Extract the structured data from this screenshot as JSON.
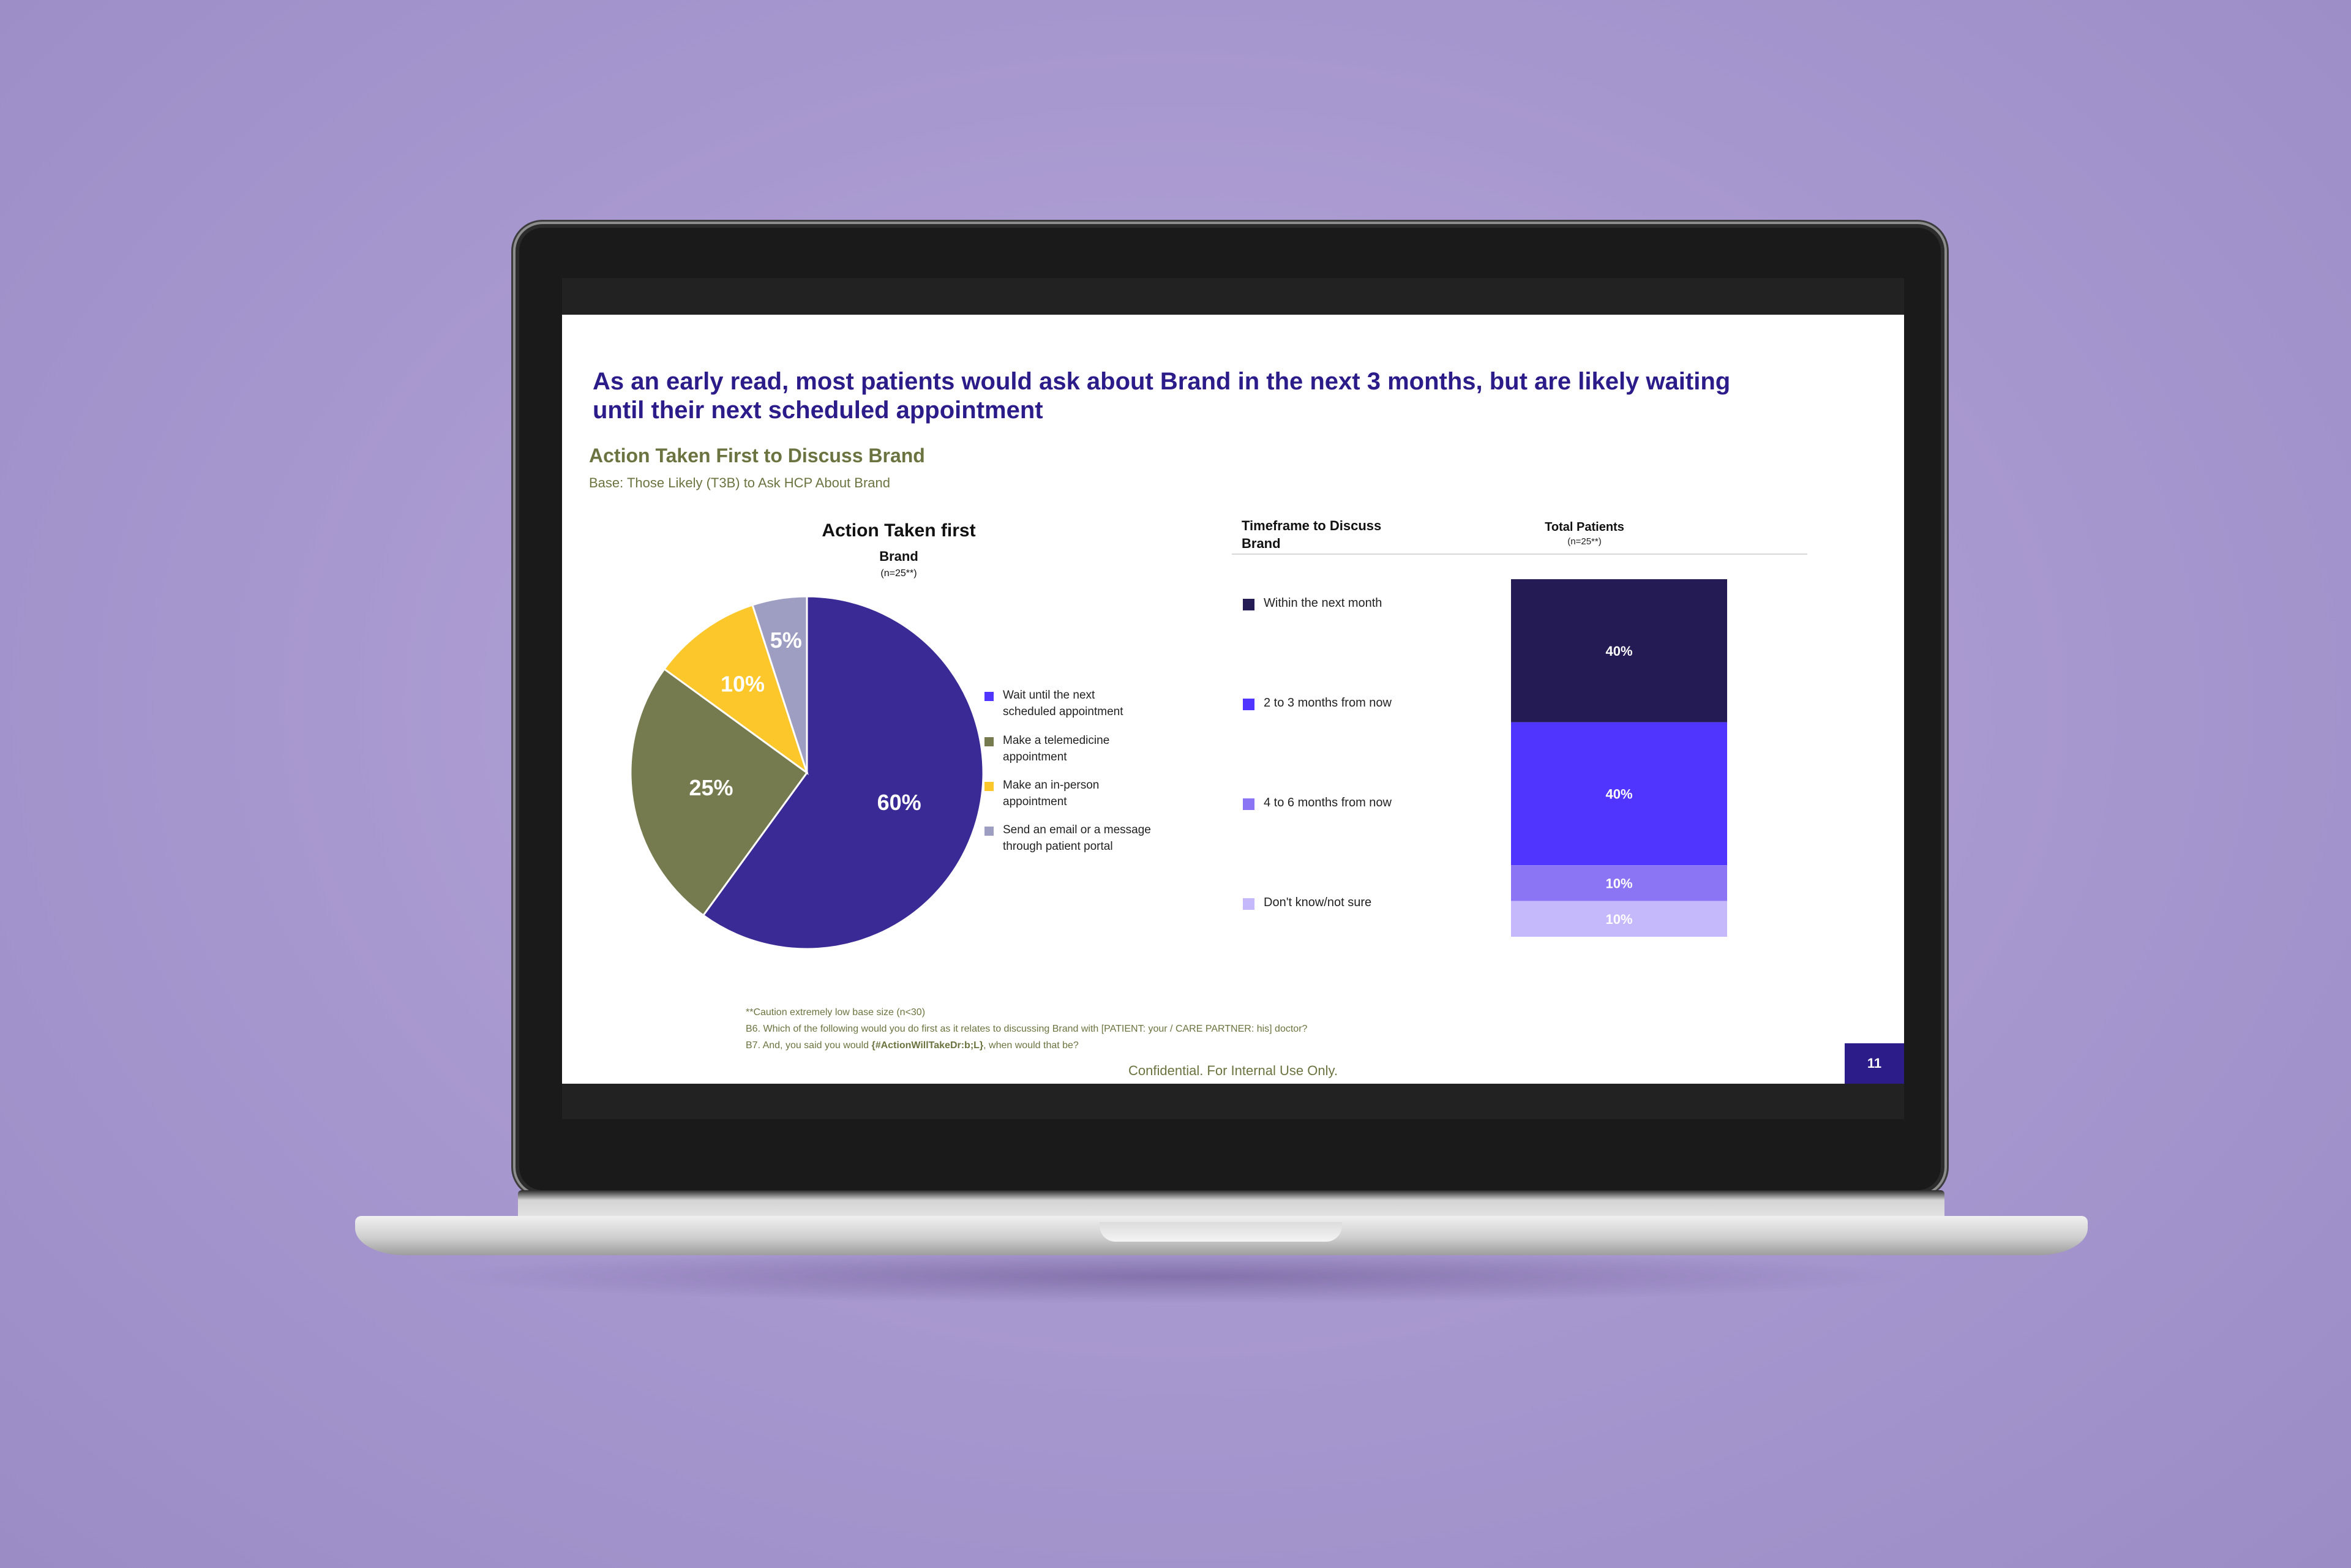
{
  "slide": {
    "headline_line1": "As an early read, most patients would ask about Brand in the next 3 months, but are likely waiting",
    "headline_line2": "until their next scheduled appointment",
    "section_title": "Action Taken First to Discuss Brand",
    "section_base": "Base: Those Likely (T3B) to Ask HCP About Brand",
    "footnote1": "**Caution extremely low base size (n<30)",
    "footnote2": "B6. Which of the following would you do first as it relates to discussing Brand with [PATIENT: your / CARE PARTNER: his] doctor?",
    "footnote3_pre": "B7. And, you said you would ",
    "footnote3_bold": "{#ActionWillTakeDr:b;L}",
    "footnote3_post": ", when would that be?",
    "confidential": "Confidential. For Internal Use Only.",
    "page_number": "11"
  },
  "chart_data": [
    {
      "type": "pie",
      "title": "Action Taken first",
      "subtitle": "Brand",
      "base_note": "(n=25**)",
      "slices": [
        {
          "label": "Wait until the next scheduled appointment",
          "label_lines": [
            "Wait until the next",
            "scheduled appointment"
          ],
          "value": 60,
          "data_label": "60%",
          "color": "#3a2a96"
        },
        {
          "label": "Make a telemedicine appointment",
          "label_lines": [
            "Make a telemedicine",
            "appointment"
          ],
          "value": 25,
          "data_label": "25%",
          "color": "#757b4e"
        },
        {
          "label": "Make an in-person appointment",
          "label_lines": [
            "Make an in-person",
            "appointment"
          ],
          "value": 10,
          "data_label": "10%",
          "color": "#fcc72a"
        },
        {
          "label": "Send an email or a message through patient portal",
          "label_lines": [
            "Send an email or a message",
            "through  patient portal"
          ],
          "value": 5,
          "data_label": "5%",
          "color": "#9d9ec2"
        }
      ],
      "legend_colors": [
        "#4f35ff",
        "#757b4e",
        "#fcc72a",
        "#9d9ec2"
      ]
    },
    {
      "type": "bar",
      "stacked": true,
      "title": "Timeframe to Discuss Brand",
      "title_lines": [
        "Timeframe to Discuss",
        "Brand"
      ],
      "categories": [
        "Total Patients"
      ],
      "base_note": "(n=25**)",
      "series": [
        {
          "name": "Within the next month",
          "value": 40,
          "data_label": "40%",
          "color": "#241b54"
        },
        {
          "name": "2 to 3 months from now",
          "value": 40,
          "data_label": "40%",
          "color": "#4f35ff"
        },
        {
          "name": "4 to 6 months from now",
          "value": 10,
          "data_label": "10%",
          "color": "#8b75f5"
        },
        {
          "name": "Don't know/not sure",
          "value": 10,
          "data_label": "10%",
          "color": "#c6b9fb"
        }
      ]
    }
  ]
}
